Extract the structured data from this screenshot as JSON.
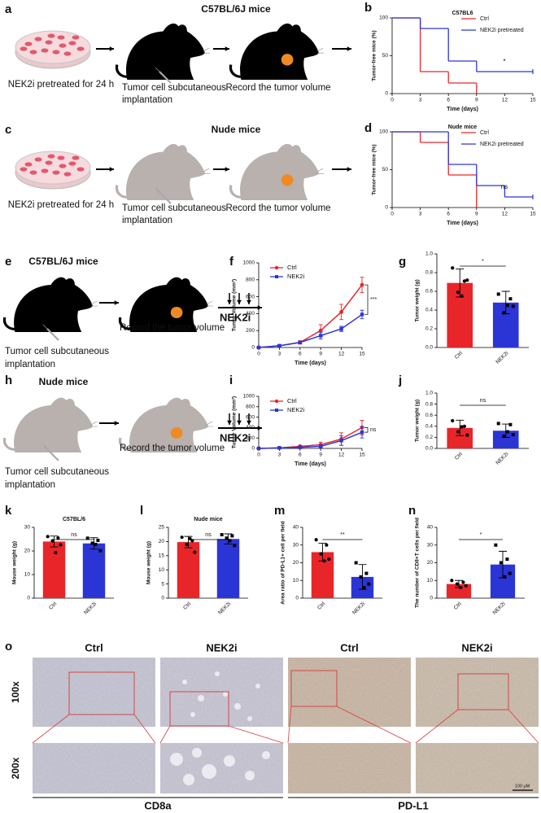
{
  "panel_labels": [
    "a",
    "b",
    "c",
    "d",
    "e",
    "f",
    "g",
    "h",
    "i",
    "j",
    "k",
    "l",
    "m",
    "n",
    "o"
  ],
  "schematics": [
    {
      "title": "C57BL/6J mice",
      "dish_label": "NEK2i pretreated for 24 h",
      "implant_label": [
        "Tumor cell subcutaneous",
        "implantation"
      ],
      "record_label": "Record the tumor volume"
    },
    {
      "title": "Nude mice",
      "dish_label": "NEK2i pretreated for 24 h",
      "implant_label": [
        "Tumor cell subcutaneous",
        "implantation"
      ],
      "record_label": "Record the tumor volume"
    },
    {
      "title": "C57BL/6J mice",
      "treatment": "NEK2i",
      "implant_label": [
        "Tumor cell subcutaneous",
        "implantation"
      ],
      "record_label": "Record the tumor volume"
    },
    {
      "title": "Nude mice",
      "treatment": "NEK2i",
      "implant_label": [
        "Tumor cell subcutaneous",
        "implantation"
      ],
      "record_label": "Record the tumor volume"
    }
  ],
  "chart_data": [
    {
      "type": "step",
      "title": "C57BL6",
      "x_label": "Time (days)",
      "y_label": "Tumor-free mice (%)",
      "x": [
        0,
        3,
        6,
        9,
        12,
        15
      ],
      "series": [
        {
          "name": "Ctrl",
          "color": "#e8262a",
          "values": [
            100,
            29,
            14,
            0,
            null,
            null
          ]
        },
        {
          "name": "NEK2i pretreated",
          "color": "#2b35d6",
          "values": [
            100,
            86,
            43,
            29,
            29,
            29
          ]
        }
      ],
      "xlim": [
        0,
        15
      ],
      "ylim": [
        0,
        100
      ],
      "xticks": [
        0,
        3,
        6,
        9,
        12,
        15
      ],
      "yticks": [
        0,
        50,
        100
      ],
      "legend": "top-right",
      "annotation": "*"
    },
    {
      "type": "step",
      "title": "Nude mice",
      "x_label": "Time (days)",
      "y_label": "Tumor-free mice (%)",
      "x": [
        0,
        3,
        6,
        9,
        12,
        15
      ],
      "series": [
        {
          "name": "Ctrl",
          "color": "#e8262a",
          "values": [
            100,
            86,
            43,
            0,
            null,
            null
          ]
        },
        {
          "name": "NEK2i pretreated",
          "color": "#2b35d6",
          "values": [
            100,
            100,
            57,
            29,
            14,
            14
          ]
        }
      ],
      "xlim": [
        0,
        15
      ],
      "ylim": [
        0,
        100
      ],
      "xticks": [
        0,
        3,
        6,
        9,
        12,
        15
      ],
      "yticks": [
        0,
        50,
        100
      ],
      "legend": "top-right",
      "annotation": "ns"
    },
    {
      "type": "line",
      "x_label": "Time (days)",
      "y_label": "Tumor Volume (mm³)",
      "x": [
        0,
        3,
        6,
        9,
        12,
        15
      ],
      "series": [
        {
          "name": "Ctrl",
          "color": "#e8262a",
          "marker": "circle",
          "values": [
            0,
            20,
            60,
            200,
            420,
            740
          ],
          "errors": [
            0,
            10,
            20,
            70,
            90,
            90
          ]
        },
        {
          "name": "NEK2i",
          "color": "#2b35d6",
          "marker": "square",
          "values": [
            0,
            20,
            60,
            140,
            220,
            390
          ],
          "errors": [
            0,
            10,
            15,
            40,
            30,
            50
          ]
        }
      ],
      "xlim": [
        0,
        15
      ],
      "ylim": [
        0,
        1000
      ],
      "xticks": [
        0,
        3,
        6,
        9,
        12,
        15
      ],
      "yticks": [
        0,
        200,
        400,
        600,
        800,
        1000
      ],
      "legend": "top-left",
      "annotation": "***"
    },
    {
      "type": "bar",
      "y_label": "Tumor weight (g)",
      "categories": [
        "Ctrl",
        "NEK2i"
      ],
      "colors": [
        "#e8262a",
        "#2b35d6"
      ],
      "markers": [
        "circle",
        "square"
      ],
      "values": [
        0.69,
        0.48
      ],
      "errors": [
        0.15,
        0.12
      ],
      "points": [
        [
          0.85,
          0.71,
          0.59,
          0.72,
          0.55
        ],
        [
          0.57,
          0.52,
          0.37,
          0.44,
          0.45
        ]
      ],
      "ylim": [
        0,
        1
      ],
      "yticks": [
        {
          "value": 0,
          "label": "0.0"
        },
        0.2,
        0.4,
        0.6,
        0.8,
        {
          "value": 1,
          "label": "1.0"
        }
      ],
      "annotation": "*"
    },
    {
      "type": "line",
      "x_label": "Time (days)",
      "y_label": "Tumor Volume (mm³)",
      "x": [
        0,
        3,
        6,
        9,
        12,
        15
      ],
      "series": [
        {
          "name": "Ctrl",
          "color": "#e8262a",
          "marker": "circle",
          "values": [
            0,
            10,
            40,
            70,
            180,
            400
          ],
          "errors": [
            0,
            10,
            20,
            50,
            120,
            140
          ]
        },
        {
          "name": "NEK2i",
          "color": "#2b35d6",
          "marker": "square",
          "values": [
            0,
            10,
            20,
            40,
            150,
            310
          ],
          "errors": [
            0,
            10,
            15,
            30,
            90,
            110
          ]
        }
      ],
      "xlim": [
        0,
        15
      ],
      "ylim": [
        0,
        1000
      ],
      "xticks": [
        0,
        3,
        6,
        9,
        12,
        15
      ],
      "yticks": [
        0,
        200,
        400,
        600,
        800,
        1000
      ],
      "legend": "top-left",
      "annotation": "ns"
    },
    {
      "type": "bar",
      "y_label": "Tumor weight (g)",
      "categories": [
        "Ctrl",
        "NEK2i"
      ],
      "colors": [
        "#e8262a",
        "#2b35d6"
      ],
      "markers": [
        "circle",
        "square"
      ],
      "values": [
        0.37,
        0.32
      ],
      "errors": [
        0.14,
        0.12
      ],
      "points": [
        [
          0.5,
          0.4,
          0.3,
          0.24,
          0.39
        ],
        [
          0.45,
          0.43,
          0.22,
          0.25,
          0.3
        ]
      ],
      "ylim": [
        0,
        1
      ],
      "yticks": [
        {
          "value": 0,
          "label": "0.0"
        },
        0.2,
        0.4,
        0.6,
        0.8,
        {
          "value": 1,
          "label": "1.0"
        }
      ],
      "annotation": "ns"
    },
    {
      "type": "bar",
      "title": "C57BL/6",
      "y_label": "Mouse weight (g)",
      "categories": [
        "Ctrl",
        "NEK2i"
      ],
      "colors": [
        "#e8262a",
        "#2b35d6"
      ],
      "markers": [
        "circle",
        "square"
      ],
      "values": [
        24,
        23.2
      ],
      "errors": [
        2.3,
        2.4
      ],
      "points": [
        [
          26.1,
          25.5,
          24.3,
          22.6,
          19.3
        ],
        [
          25.4,
          24.5,
          23.3,
          20.1,
          22.8
        ]
      ],
      "ylim": [
        0,
        30
      ],
      "yticks": [
        0,
        10,
        20,
        30
      ],
      "annotation": "ns"
    },
    {
      "type": "bar",
      "title": "Nude mice",
      "y_label": "Mouse weight (g)",
      "categories": [
        "Ctrl",
        "NEK2i"
      ],
      "colors": [
        "#e8262a",
        "#2b35d6"
      ],
      "markers": [
        "circle",
        "square"
      ],
      "values": [
        19.8,
        20.9
      ],
      "errors": [
        2.0,
        1.8
      ],
      "points": [
        [
          21.5,
          20.3,
          19.0,
          16.2,
          21.0
        ],
        [
          22.4,
          22.0,
          21.2,
          18.6,
          20.3
        ]
      ],
      "ylim": [
        0,
        25
      ],
      "yticks": [
        0,
        5,
        10,
        15,
        20,
        25
      ],
      "annotation": "ns"
    },
    {
      "type": "bar",
      "y_label": "Area ratio of PD-L1+ cell per field",
      "categories": [
        "Ctrl",
        "NEK2i"
      ],
      "colors": [
        "#e8262a",
        "#2b35d6"
      ],
      "markers": [
        "circle",
        "square"
      ],
      "values": [
        26,
        12
      ],
      "errors": [
        5,
        7
      ],
      "points": [
        [
          33,
          30,
          25,
          22,
          21
        ],
        [
          20,
          14,
          12,
          8,
          6
        ]
      ],
      "ylim": [
        0,
        40
      ],
      "yticks": [
        0,
        10,
        20,
        30,
        40
      ],
      "annotation": "**"
    },
    {
      "type": "bar",
      "y_label": "The number of CD8+T cells per field",
      "categories": [
        "Ctrl",
        "NEK2i"
      ],
      "colors": [
        "#e8262a",
        "#2b35d6"
      ],
      "markers": [
        "circle",
        "square"
      ],
      "values": [
        8,
        19
      ],
      "errors": [
        2,
        7.5
      ],
      "points": [
        [
          10,
          9,
          8,
          7,
          6
        ],
        [
          30,
          22,
          20,
          14,
          12
        ]
      ],
      "ylim": [
        0,
        40
      ],
      "yticks": [
        0,
        10,
        20,
        30,
        40
      ],
      "annotation": "*"
    }
  ],
  "micrographs": {
    "columns": [
      "Ctrl",
      "NEK2i",
      "Ctrl",
      "NEK2i"
    ],
    "rows": [
      "100x",
      "200x"
    ],
    "groups": [
      "CD8a",
      "PD-L1"
    ],
    "scale_bar": "100 μM"
  }
}
